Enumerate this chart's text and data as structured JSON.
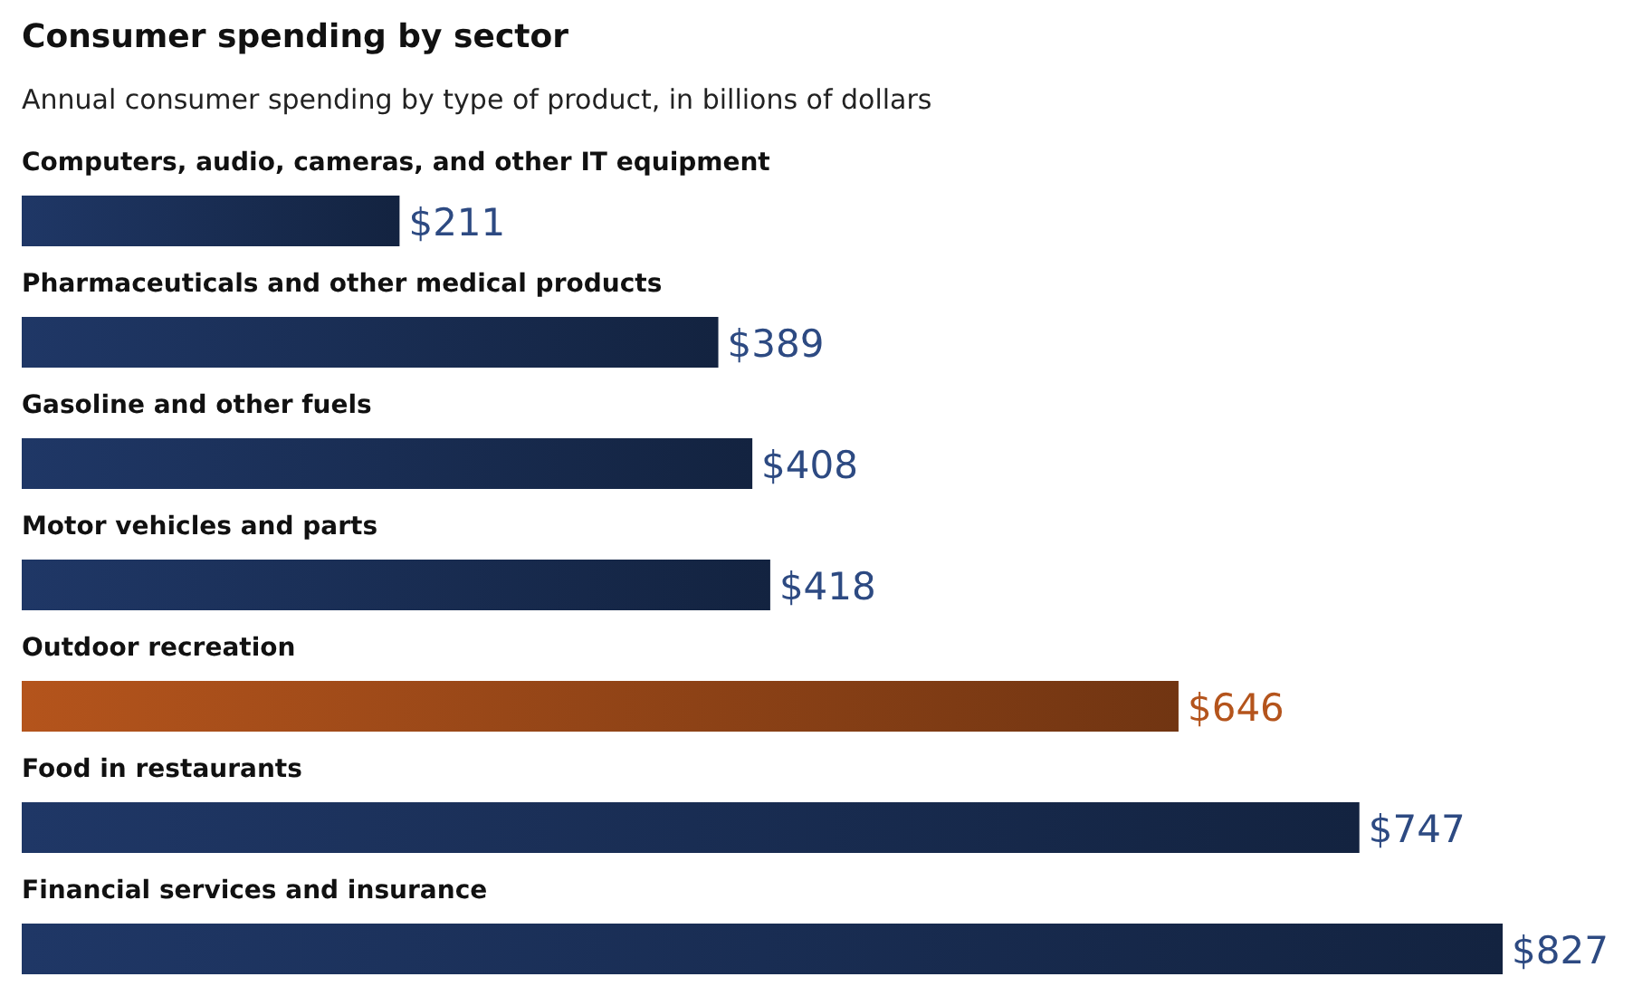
{
  "chart_data": {
    "type": "bar",
    "orientation": "horizontal",
    "title": "Consumer spending by sector",
    "subtitle": "Annual consumer spending by type of product, in billions of dollars",
    "categories": [
      "Computers, audio, cameras, and other IT equipment",
      "Pharmaceuticals and other medical products",
      "Gasoline and other fuels",
      "Motor vehicles and parts",
      "Outdoor recreation",
      "Food in restaurants",
      "Financial services and insurance"
    ],
    "values": [
      211,
      389,
      408,
      418,
      646,
      747,
      827
    ],
    "value_labels": [
      "$211",
      "$389",
      "$408",
      "$418",
      "$646",
      "$747",
      "$827"
    ],
    "colors": [
      "#1f3766",
      "#1f3766",
      "#1f3766",
      "#1f3766",
      "#b4541c",
      "#1f3766",
      "#1f3766"
    ]
  }
}
